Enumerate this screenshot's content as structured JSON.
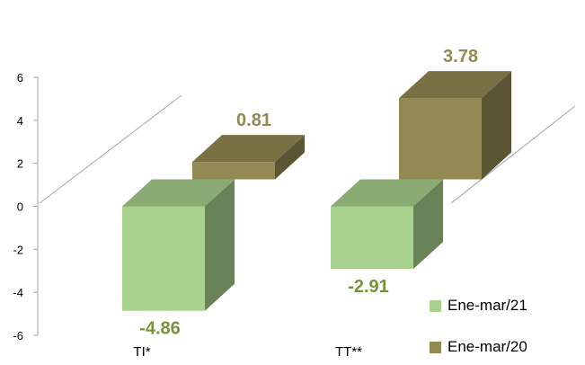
{
  "chart_data": {
    "type": "bar",
    "categories": [
      "TI*",
      "TT**"
    ],
    "series": [
      {
        "name": "Ene-mar/21",
        "values": [
          -4.86,
          -2.91
        ],
        "labels": [
          "-4.86",
          "-2.91"
        ],
        "color": "#a9d18e",
        "label_color": "#77933c"
      },
      {
        "name": "Ene-mar/20",
        "values": [
          0.81,
          3.78
        ],
        "labels": [
          "0.81",
          "3.78"
        ],
        "color": "#938953",
        "label_color": "#938953"
      }
    ],
    "yticks": [
      "6",
      "4",
      "2",
      "0",
      "-2",
      "-4",
      "-6"
    ],
    "ylim": [
      -6,
      6
    ],
    "grid": false,
    "legend_position": "bottom-right"
  }
}
